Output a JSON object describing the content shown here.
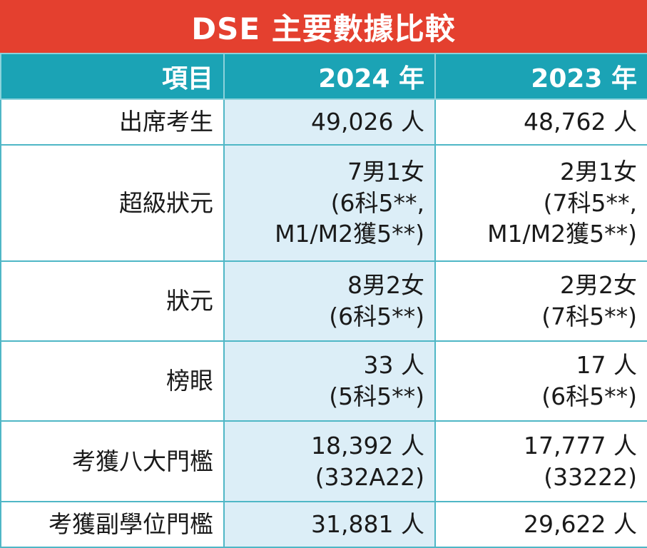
{
  "title": "DSE 主要數據比較",
  "header": {
    "item": "項目",
    "year_2024": "2024 年",
    "year_2023": "2023 年"
  },
  "rows": [
    {
      "item": "出席考生",
      "v2024": [
        "49,026 人"
      ],
      "v2023": [
        "48,762 人"
      ]
    },
    {
      "item": "超級狀元",
      "v2024": [
        "7男1女",
        "(6科5**,",
        "M1/M2獲5**)"
      ],
      "v2023": [
        "2男1女",
        "(7科5**,",
        "M1/M2獲5**)"
      ]
    },
    {
      "item": "狀元",
      "v2024": [
        "8男2女",
        "(6科5**)"
      ],
      "v2023": [
        "2男2女",
        "(7科5**)"
      ]
    },
    {
      "item": "榜眼",
      "v2024": [
        "33 人",
        "(5科5**)"
      ],
      "v2023": [
        "17 人",
        "(6科5**)"
      ]
    },
    {
      "item": "考獲八大門檻",
      "v2024": [
        "18,392 人",
        "(332A22)"
      ],
      "v2023": [
        "17,777 人",
        "(33222)"
      ]
    },
    {
      "item": "考獲副學位門檻",
      "v2024": [
        "31,881 人"
      ],
      "v2023": [
        "29,622 人"
      ]
    }
  ],
  "colors": {
    "title_bg": "#e4402f",
    "header_bg": "#1ba3b5",
    "col_2024_bg": "#dceef7",
    "border": "#4fb7c6"
  }
}
